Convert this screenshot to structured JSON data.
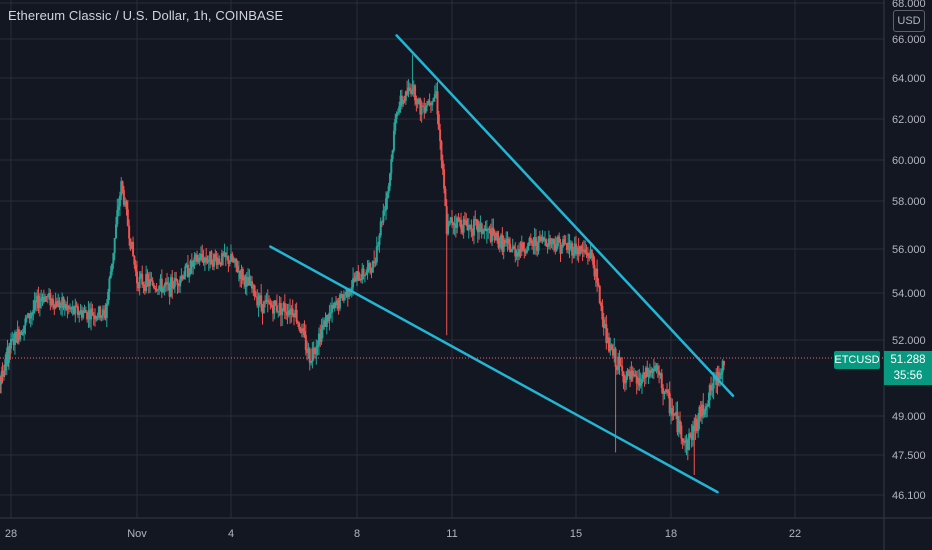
{
  "header": {
    "title": "Ethereum Classic / U.S. Dollar, 1h, COINBASE",
    "currency_label": "USD"
  },
  "colors": {
    "background": "#131722",
    "grid": "#2a2e39",
    "up_candle": "#26a69a",
    "down_candle": "#ef5350",
    "trendline": "#22b6d4",
    "price_line": "#f06277",
    "price_tag": "#089981"
  },
  "last_price": {
    "symbol": "ETCUSD",
    "price": "51.288",
    "countdown": "35:56"
  },
  "chart_data": {
    "type": "candlestick",
    "title": "Ethereum Classic / U.S. Dollar, 1h, COINBASE",
    "y_axis": {
      "ticks": [
        "46.100",
        "47.500",
        "49.000",
        "51.288",
        "52.000",
        "54.000",
        "56.000",
        "58.000",
        "60.000",
        "62.000",
        "64.000",
        "66.000",
        "68.000"
      ],
      "tick_values": [
        46.1,
        47.5,
        49.0,
        52.0,
        54.0,
        56.0,
        58.0,
        60.0,
        62.0,
        64.0,
        66.0,
        68.0
      ],
      "range": [
        45.6,
        68.0
      ],
      "scale": "linear"
    },
    "x_axis": {
      "ticks": [
        "28",
        "Nov",
        "4",
        "8",
        "11",
        "15",
        "18",
        "22"
      ],
      "range_days": [
        "Oct 27",
        "Nov 23"
      ]
    },
    "grid": true,
    "key_points": [
      {
        "t": "Oct 27",
        "price": 49.5
      },
      {
        "t": "Oct 28",
        "price": 51.8
      },
      {
        "t": "Oct 29",
        "price": 53.9
      },
      {
        "t": "Oct 30",
        "price": 53.2
      },
      {
        "t": "Oct 31",
        "price": 53.1
      },
      {
        "t": "Oct 31 12:00",
        "price": 58.8
      },
      {
        "t": "Nov 1",
        "price": 54.6
      },
      {
        "t": "Nov 2",
        "price": 54.2
      },
      {
        "t": "Nov 3",
        "price": 55.6
      },
      {
        "t": "Nov 4",
        "price": 55.5
      },
      {
        "t": "Nov 5",
        "price": 53.5
      },
      {
        "t": "Nov 6",
        "price": 53.3
      },
      {
        "t": "Nov 6 12:00",
        "price": 51.3
      },
      {
        "t": "Nov 7",
        "price": 52.8
      },
      {
        "t": "Nov 8",
        "price": 54.7
      },
      {
        "t": "Nov 8 12:00",
        "price": 55.2
      },
      {
        "t": "Nov 9",
        "price": 58.8
      },
      {
        "t": "Nov 9 06:00",
        "price": 62.5
      },
      {
        "t": "Nov 9 18:00",
        "price": 63.6
      },
      {
        "t": "Nov 10",
        "price": 62.5
      },
      {
        "t": "Nov 10 12:00",
        "price": 63.3
      },
      {
        "t": "Nov 10 20:00",
        "price": 56.8
      },
      {
        "t": "Nov 11",
        "price": 57.2
      },
      {
        "t": "Nov 12",
        "price": 56.8
      },
      {
        "t": "Nov 13",
        "price": 55.9
      },
      {
        "t": "Nov 14",
        "price": 56.4
      },
      {
        "t": "Nov 15",
        "price": 56.0
      },
      {
        "t": "Nov 15 12:00",
        "price": 55.7
      },
      {
        "t": "Nov 16",
        "price": 51.8
      },
      {
        "t": "Nov 16 12:00",
        "price": 50.6
      },
      {
        "t": "Nov 17",
        "price": 50.3
      },
      {
        "t": "Nov 17 12:00",
        "price": 50.9
      },
      {
        "t": "Nov 18",
        "price": 49.3
      },
      {
        "t": "Nov 18 12:00",
        "price": 47.9
      },
      {
        "t": "Nov 19",
        "price": 49.2
      },
      {
        "t": "Nov 19 12:00",
        "price": 50.6
      },
      {
        "t": "Nov 19 18:00",
        "price": 51.29
      }
    ],
    "extremes": [
      {
        "t": "Oct 31 12:00",
        "price": 58.8,
        "kind": "wick-high"
      },
      {
        "t": "Nov 6 12:00",
        "price": 50.8,
        "kind": "wick-low"
      },
      {
        "t": "Nov 9 18:00",
        "price": 65.2,
        "kind": "wick-high"
      },
      {
        "t": "Nov 10 20:00",
        "price": 52.2,
        "kind": "wick-low"
      },
      {
        "t": "Nov 16 06:00",
        "price": 47.6,
        "kind": "wick-low"
      },
      {
        "t": "Nov 18 18:00",
        "price": 46.8,
        "kind": "wick-low"
      }
    ],
    "trendlines": [
      {
        "name": "upper",
        "from": {
          "t": "Nov 9 06:00",
          "price": 66.2
        },
        "to": {
          "t": "Nov 20",
          "price": 49.8
        }
      },
      {
        "name": "lower",
        "from": {
          "t": "Nov 5 06:00",
          "price": 56.1
        },
        "to": {
          "t": "Nov 19 12:00",
          "price": 46.2
        }
      }
    ]
  }
}
